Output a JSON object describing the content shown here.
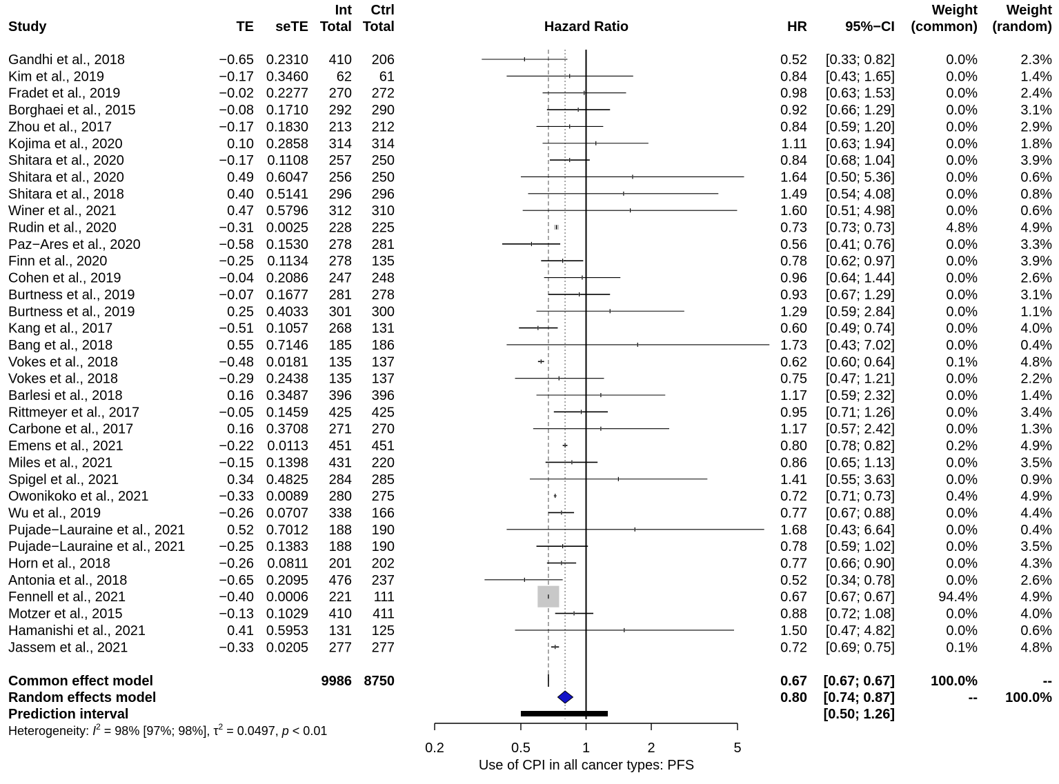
{
  "chart_data": {
    "type": "forest",
    "headers": {
      "study": "Study",
      "te": "TE",
      "sete": "seTE",
      "int_top": "Int",
      "int_bottom": "Total",
      "ctrl_top": "Ctrl",
      "ctrl_bottom": "Total",
      "plot": "Hazard Ratio",
      "hr": "HR",
      "ci": "95%−CI",
      "w_common_top": "Weight",
      "w_common_bottom": "(common)",
      "w_random_top": "Weight",
      "w_random_bottom": "(random)"
    },
    "studies": [
      {
        "study": "Gandhi et al., 2018",
        "te": "−0.65",
        "sete": "0.2310",
        "int": "410",
        "ctrl": "206",
        "hr": 0.52,
        "lo": 0.33,
        "hi": 0.82,
        "hr_text": "0.52",
        "ci_text": "[0.33; 0.82]",
        "w_common": "0.0%",
        "w_random": "2.3%"
      },
      {
        "study": "Kim et al., 2019",
        "te": "−0.17",
        "sete": "0.3460",
        "int": "62",
        "ctrl": "61",
        "hr": 0.84,
        "lo": 0.43,
        "hi": 1.65,
        "hr_text": "0.84",
        "ci_text": "[0.43; 1.65]",
        "w_common": "0.0%",
        "w_random": "1.4%"
      },
      {
        "study": "Fradet et al., 2019",
        "te": "−0.02",
        "sete": "0.2277",
        "int": "270",
        "ctrl": "272",
        "hr": 0.98,
        "lo": 0.63,
        "hi": 1.53,
        "hr_text": "0.98",
        "ci_text": "[0.63; 1.53]",
        "w_common": "0.0%",
        "w_random": "2.4%"
      },
      {
        "study": "Borghaei et al., 2015",
        "te": "−0.08",
        "sete": "0.1710",
        "int": "292",
        "ctrl": "290",
        "hr": 0.92,
        "lo": 0.66,
        "hi": 1.29,
        "hr_text": "0.92",
        "ci_text": "[0.66; 1.29]",
        "w_common": "0.0%",
        "w_random": "3.1%"
      },
      {
        "study": "Zhou et al., 2017",
        "te": "−0.17",
        "sete": "0.1830",
        "int": "213",
        "ctrl": "212",
        "hr": 0.84,
        "lo": 0.59,
        "hi": 1.2,
        "hr_text": "0.84",
        "ci_text": "[0.59; 1.20]",
        "w_common": "0.0%",
        "w_random": "2.9%"
      },
      {
        "study": "Kojima et al., 2020",
        "te": "0.10",
        "sete": "0.2858",
        "int": "314",
        "ctrl": "314",
        "hr": 1.11,
        "lo": 0.63,
        "hi": 1.94,
        "hr_text": "1.11",
        "ci_text": "[0.63; 1.94]",
        "w_common": "0.0%",
        "w_random": "1.8%"
      },
      {
        "study": "Shitara et al., 2020",
        "te": "−0.17",
        "sete": "0.1108",
        "int": "257",
        "ctrl": "250",
        "hr": 0.84,
        "lo": 0.68,
        "hi": 1.04,
        "hr_text": "0.84",
        "ci_text": "[0.68; 1.04]",
        "w_common": "0.0%",
        "w_random": "3.9%"
      },
      {
        "study": "Shitara et al., 2020",
        "te": "0.49",
        "sete": "0.6047",
        "int": "256",
        "ctrl": "250",
        "hr": 1.64,
        "lo": 0.5,
        "hi": 5.36,
        "hr_text": "1.64",
        "ci_text": "[0.50; 5.36]",
        "w_common": "0.0%",
        "w_random": "0.6%"
      },
      {
        "study": "Shitara et al., 2018",
        "te": "0.40",
        "sete": "0.5141",
        "int": "296",
        "ctrl": "296",
        "hr": 1.49,
        "lo": 0.54,
        "hi": 4.08,
        "hr_text": "1.49",
        "ci_text": "[0.54; 4.08]",
        "w_common": "0.0%",
        "w_random": "0.8%"
      },
      {
        "study": "Winer et al., 2021",
        "te": "0.47",
        "sete": "0.5796",
        "int": "312",
        "ctrl": "310",
        "hr": 1.6,
        "lo": 0.51,
        "hi": 4.98,
        "hr_text": "1.60",
        "ci_text": "[0.51; 4.98]",
        "w_common": "0.0%",
        "w_random": "0.6%"
      },
      {
        "study": "Rudin et al., 2020",
        "te": "−0.31",
        "sete": "0.0025",
        "int": "228",
        "ctrl": "225",
        "hr": 0.73,
        "lo": 0.73,
        "hi": 0.73,
        "hr_text": "0.73",
        "ci_text": "[0.73; 0.73]",
        "w_common": "4.8%",
        "w_random": "4.9%"
      },
      {
        "study": "Paz−Ares et al., 2020",
        "te": "−0.58",
        "sete": "0.1530",
        "int": "278",
        "ctrl": "281",
        "hr": 0.56,
        "lo": 0.41,
        "hi": 0.76,
        "hr_text": "0.56",
        "ci_text": "[0.41; 0.76]",
        "w_common": "0.0%",
        "w_random": "3.3%"
      },
      {
        "study": "Finn et al., 2020",
        "te": "−0.25",
        "sete": "0.1134",
        "int": "278",
        "ctrl": "135",
        "hr": 0.78,
        "lo": 0.62,
        "hi": 0.97,
        "hr_text": "0.78",
        "ci_text": "[0.62; 0.97]",
        "w_common": "0.0%",
        "w_random": "3.9%"
      },
      {
        "study": "Cohen et al., 2019",
        "te": "−0.04",
        "sete": "0.2086",
        "int": "247",
        "ctrl": "248",
        "hr": 0.96,
        "lo": 0.64,
        "hi": 1.44,
        "hr_text": "0.96",
        "ci_text": "[0.64; 1.44]",
        "w_common": "0.0%",
        "w_random": "2.6%"
      },
      {
        "study": "Burtness et al., 2019",
        "te": "−0.07",
        "sete": "0.1677",
        "int": "281",
        "ctrl": "278",
        "hr": 0.93,
        "lo": 0.67,
        "hi": 1.29,
        "hr_text": "0.93",
        "ci_text": "[0.67; 1.29]",
        "w_common": "0.0%",
        "w_random": "3.1%"
      },
      {
        "study": "Burtness et al., 2019",
        "te": "0.25",
        "sete": "0.4033",
        "int": "301",
        "ctrl": "300",
        "hr": 1.29,
        "lo": 0.59,
        "hi": 2.84,
        "hr_text": "1.29",
        "ci_text": "[0.59; 2.84]",
        "w_common": "0.0%",
        "w_random": "1.1%"
      },
      {
        "study": "Kang et al., 2017",
        "te": "−0.51",
        "sete": "0.1057",
        "int": "268",
        "ctrl": "131",
        "hr": 0.6,
        "lo": 0.49,
        "hi": 0.74,
        "hr_text": "0.60",
        "ci_text": "[0.49; 0.74]",
        "w_common": "0.0%",
        "w_random": "4.0%"
      },
      {
        "study": "Bang et al., 2018",
        "te": "0.55",
        "sete": "0.7146",
        "int": "185",
        "ctrl": "186",
        "hr": 1.73,
        "lo": 0.43,
        "hi": 7.02,
        "hr_text": "1.73",
        "ci_text": "[0.43; 7.02]",
        "w_common": "0.0%",
        "w_random": "0.4%"
      },
      {
        "study": "Vokes et al., 2018",
        "te": "−0.48",
        "sete": "0.0181",
        "int": "135",
        "ctrl": "137",
        "hr": 0.62,
        "lo": 0.6,
        "hi": 0.64,
        "hr_text": "0.62",
        "ci_text": "[0.60; 0.64]",
        "w_common": "0.1%",
        "w_random": "4.8%"
      },
      {
        "study": "Vokes et al., 2018",
        "te": "−0.29",
        "sete": "0.2438",
        "int": "135",
        "ctrl": "137",
        "hr": 0.75,
        "lo": 0.47,
        "hi": 1.21,
        "hr_text": "0.75",
        "ci_text": "[0.47; 1.21]",
        "w_common": "0.0%",
        "w_random": "2.2%"
      },
      {
        "study": "Barlesi et al., 2018",
        "te": "0.16",
        "sete": "0.3487",
        "int": "396",
        "ctrl": "396",
        "hr": 1.17,
        "lo": 0.59,
        "hi": 2.32,
        "hr_text": "1.17",
        "ci_text": "[0.59; 2.32]",
        "w_common": "0.0%",
        "w_random": "1.4%"
      },
      {
        "study": "Rittmeyer et al., 2017",
        "te": "−0.05",
        "sete": "0.1459",
        "int": "425",
        "ctrl": "425",
        "hr": 0.95,
        "lo": 0.71,
        "hi": 1.26,
        "hr_text": "0.95",
        "ci_text": "[0.71; 1.26]",
        "w_common": "0.0%",
        "w_random": "3.4%"
      },
      {
        "study": "Carbone et al., 2017",
        "te": "0.16",
        "sete": "0.3708",
        "int": "271",
        "ctrl": "270",
        "hr": 1.17,
        "lo": 0.57,
        "hi": 2.42,
        "hr_text": "1.17",
        "ci_text": "[0.57; 2.42]",
        "w_common": "0.0%",
        "w_random": "1.3%"
      },
      {
        "study": "Emens et al., 2021",
        "te": "−0.22",
        "sete": "0.0113",
        "int": "451",
        "ctrl": "451",
        "hr": 0.8,
        "lo": 0.78,
        "hi": 0.82,
        "hr_text": "0.80",
        "ci_text": "[0.78; 0.82]",
        "w_common": "0.2%",
        "w_random": "4.9%"
      },
      {
        "study": "Miles et al., 2021",
        "te": "−0.15",
        "sete": "0.1398",
        "int": "431",
        "ctrl": "220",
        "hr": 0.86,
        "lo": 0.65,
        "hi": 1.13,
        "hr_text": "0.86",
        "ci_text": "[0.65; 1.13]",
        "w_common": "0.0%",
        "w_random": "3.5%"
      },
      {
        "study": "Spigel et al., 2021",
        "te": "0.34",
        "sete": "0.4825",
        "int": "284",
        "ctrl": "285",
        "hr": 1.41,
        "lo": 0.55,
        "hi": 3.63,
        "hr_text": "1.41",
        "ci_text": "[0.55; 3.63]",
        "w_common": "0.0%",
        "w_random": "0.9%"
      },
      {
        "study": "Owonikoko et al., 2021",
        "te": "−0.33",
        "sete": "0.0089",
        "int": "280",
        "ctrl": "275",
        "hr": 0.72,
        "lo": 0.71,
        "hi": 0.73,
        "hr_text": "0.72",
        "ci_text": "[0.71; 0.73]",
        "w_common": "0.4%",
        "w_random": "4.9%"
      },
      {
        "study": "Wu et al., 2019",
        "te": "−0.26",
        "sete": "0.0707",
        "int": "338",
        "ctrl": "166",
        "hr": 0.77,
        "lo": 0.67,
        "hi": 0.88,
        "hr_text": "0.77",
        "ci_text": "[0.67; 0.88]",
        "w_common": "0.0%",
        "w_random": "4.4%"
      },
      {
        "study": "Pujade−Lauraine et al., 2021",
        "te": "0.52",
        "sete": "0.7012",
        "int": "188",
        "ctrl": "190",
        "hr": 1.68,
        "lo": 0.43,
        "hi": 6.64,
        "hr_text": "1.68",
        "ci_text": "[0.43; 6.64]",
        "w_common": "0.0%",
        "w_random": "0.4%"
      },
      {
        "study": "Pujade−Lauraine et al., 2021",
        "te": "−0.25",
        "sete": "0.1383",
        "int": "188",
        "ctrl": "190",
        "hr": 0.78,
        "lo": 0.59,
        "hi": 1.02,
        "hr_text": "0.78",
        "ci_text": "[0.59; 1.02]",
        "w_common": "0.0%",
        "w_random": "3.5%"
      },
      {
        "study": "Horn et al., 2018",
        "te": "−0.26",
        "sete": "0.0811",
        "int": "201",
        "ctrl": "202",
        "hr": 0.77,
        "lo": 0.66,
        "hi": 0.9,
        "hr_text": "0.77",
        "ci_text": "[0.66; 0.90]",
        "w_common": "0.0%",
        "w_random": "4.3%"
      },
      {
        "study": "Antonia et al., 2018",
        "te": "−0.65",
        "sete": "0.2095",
        "int": "476",
        "ctrl": "237",
        "hr": 0.52,
        "lo": 0.34,
        "hi": 0.78,
        "hr_text": "0.52",
        "ci_text": "[0.34; 0.78]",
        "w_common": "0.0%",
        "w_random": "2.6%"
      },
      {
        "study": "Fennell et al., 2021",
        "te": "−0.40",
        "sete": "0.0006",
        "int": "221",
        "ctrl": "111",
        "hr": 0.67,
        "lo": 0.67,
        "hi": 0.67,
        "hr_text": "0.67",
        "ci_text": "[0.67; 0.67]",
        "w_common": "94.4%",
        "w_random": "4.9%"
      },
      {
        "study": "Motzer et al., 2015",
        "te": "−0.13",
        "sete": "0.1029",
        "int": "410",
        "ctrl": "411",
        "hr": 0.88,
        "lo": 0.72,
        "hi": 1.08,
        "hr_text": "0.88",
        "ci_text": "[0.72; 1.08]",
        "w_common": "0.0%",
        "w_random": "4.0%"
      },
      {
        "study": "Hamanishi et al., 2021",
        "te": "0.41",
        "sete": "0.5953",
        "int": "131",
        "ctrl": "125",
        "hr": 1.5,
        "lo": 0.47,
        "hi": 4.82,
        "hr_text": "1.50",
        "ci_text": "[0.47; 4.82]",
        "w_common": "0.0%",
        "w_random": "0.6%"
      },
      {
        "study": "Jassem  et al., 2021",
        "te": "−0.33",
        "sete": "0.0205",
        "int": "277",
        "ctrl": "277",
        "hr": 0.72,
        "lo": 0.69,
        "hi": 0.75,
        "hr_text": "0.72",
        "ci_text": "[0.69; 0.75]",
        "w_common": "0.1%",
        "w_random": "4.8%"
      }
    ],
    "common": {
      "label": "Common effect model",
      "int_total": "9986",
      "ctrl_total": "8750",
      "hr": 0.67,
      "lo": 0.67,
      "hi": 0.67,
      "hr_text": "0.67",
      "ci_text": "[0.67; 0.67]",
      "w_common": "100.0%",
      "w_random": "--"
    },
    "random": {
      "label": "Random effects model",
      "hr": 0.8,
      "lo": 0.74,
      "hi": 0.87,
      "hr_text": "0.80",
      "ci_text": "[0.74; 0.87]",
      "w_common": "--",
      "w_random": "100.0%"
    },
    "prediction": {
      "label": "Prediction interval",
      "lo": 0.5,
      "hi": 1.26,
      "ci_text": "[0.50; 1.26]"
    },
    "heterogeneity": {
      "prefix": "Heterogeneity: ",
      "i2_sym": "I",
      "i2_sup": "2",
      "i2_val": " = 98% [97%; 98%], ",
      "tau_sym": "τ",
      "tau_sup": "2",
      "tau_val": " = 0.0497, ",
      "p_sym": "p",
      "p_val": " < 0.01"
    },
    "xaxis": {
      "scale": "log",
      "ticks": [
        0.2,
        0.5,
        1,
        2,
        5
      ],
      "tick_labels": [
        "0.2",
        "0.5",
        "1",
        "2",
        "5"
      ],
      "label": "Use of CPI in all cancer types: PFS",
      "range": [
        0.2,
        5
      ]
    },
    "reference_line": 1,
    "colors": {
      "text": "#000000",
      "diamond": "#1414c8",
      "square_fill": "#c8c8c8",
      "ci_line": "#000000",
      "dashed_line": "#808080"
    }
  }
}
